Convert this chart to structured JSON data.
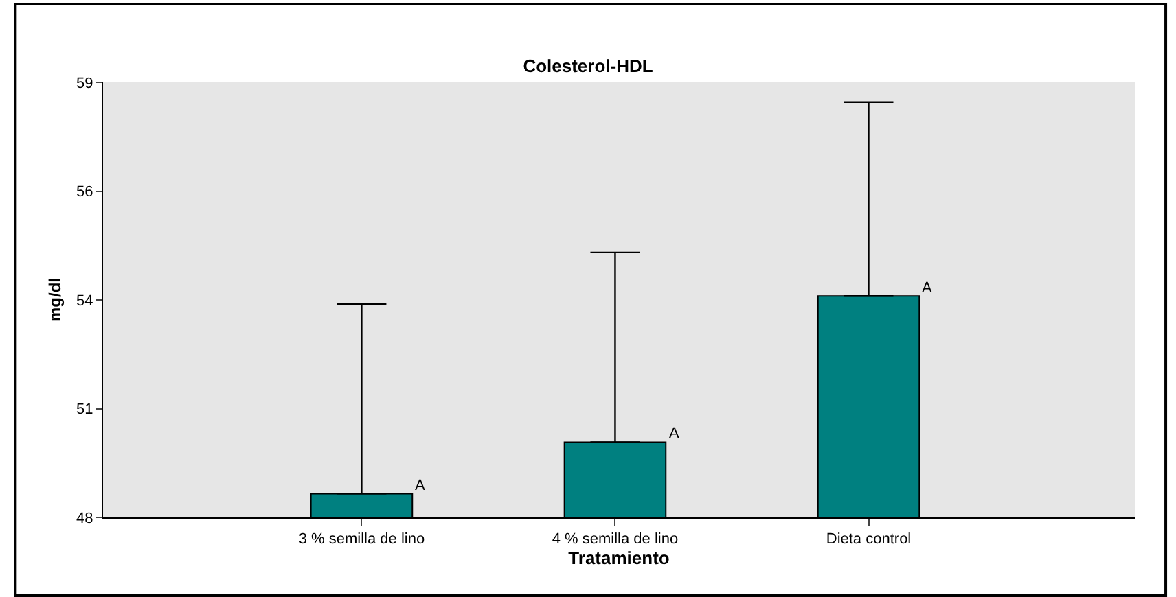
{
  "chart_data": {
    "type": "bar",
    "title": "Colesterol-HDL",
    "xlabel": "Tratamiento",
    "ylabel": "mg/dl",
    "categories": [
      "3 % semilla de lino",
      "4 % semilla de lino",
      "Dieta control"
    ],
    "values": [
      48.6,
      49.9,
      53.6
    ],
    "color": "#008080",
    "errors": [
      [
        48.6,
        53.4
      ],
      [
        49.9,
        54.7
      ],
      [
        53.6,
        58.5
      ]
    ],
    "ylim": [
      48,
      59
    ],
    "yticks": [
      48,
      {
        "value": 50.75,
        "label": "51"
      },
      {
        "value": 53.5,
        "label": "54"
      },
      {
        "value": 56.25,
        "label": "56"
      },
      59
    ],
    "annotations": [
      "A",
      "A",
      "A"
    ],
    "grid": false,
    "legend": false
  }
}
